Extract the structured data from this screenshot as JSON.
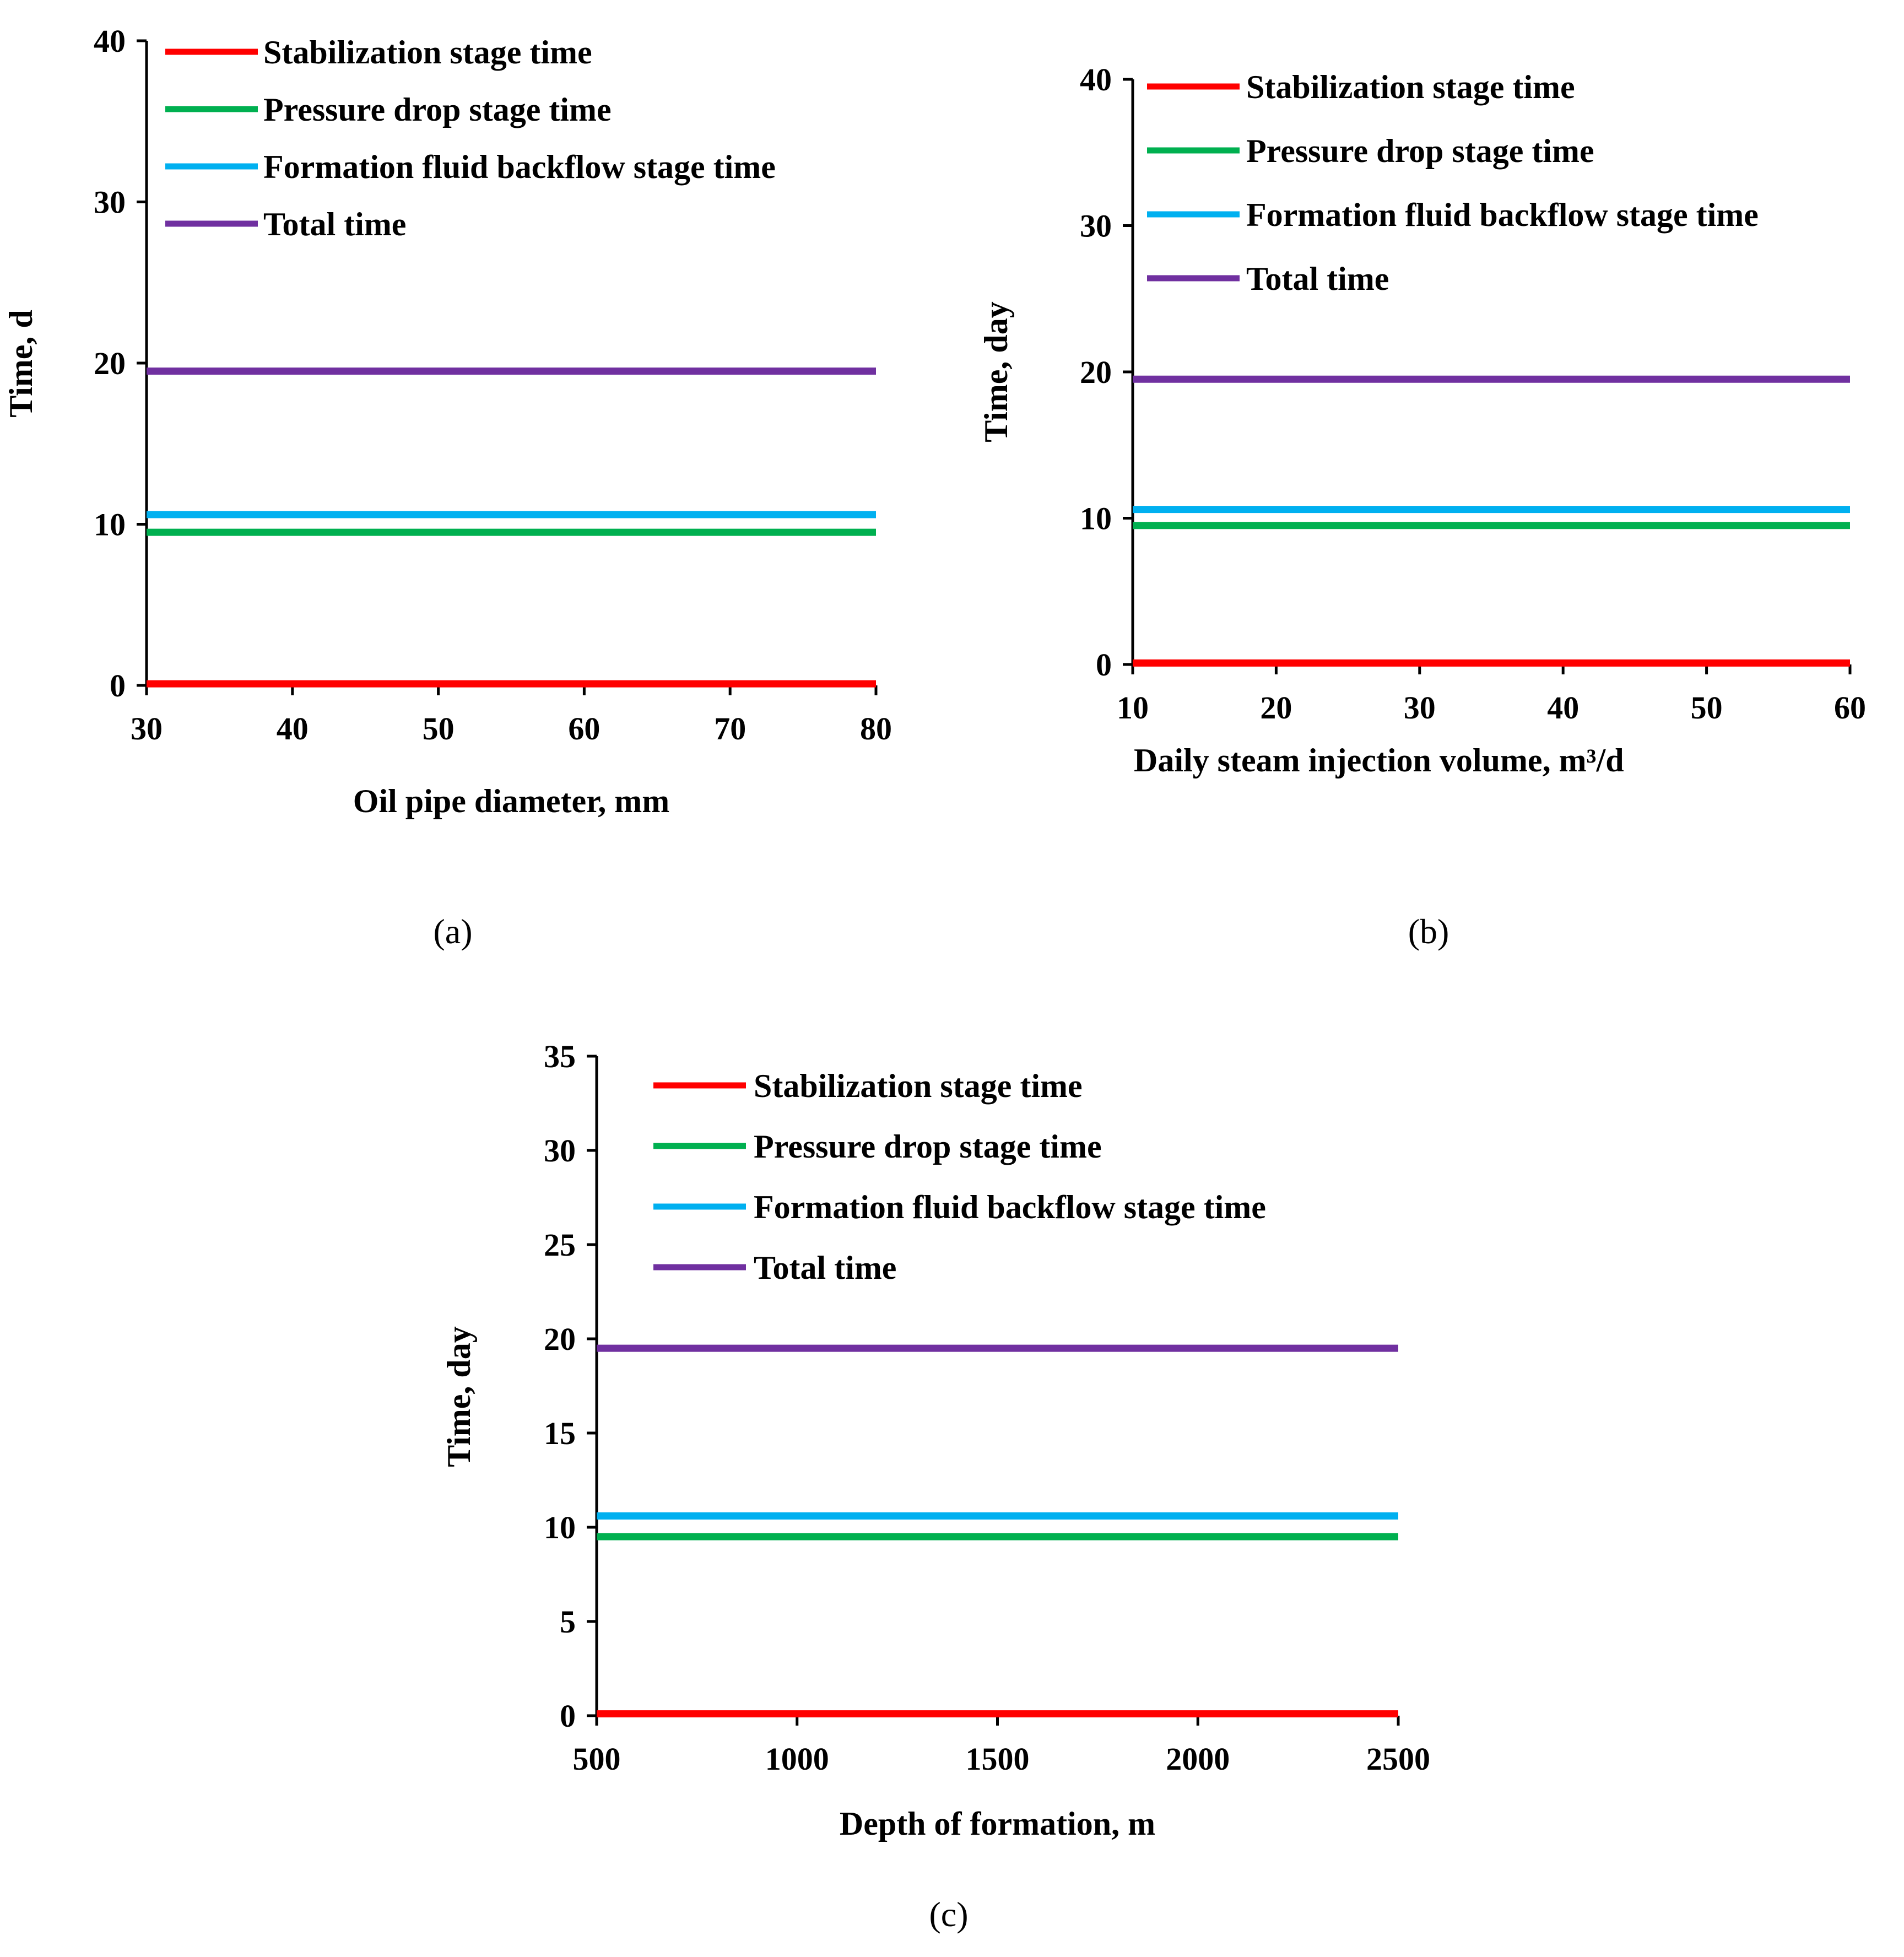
{
  "colors": {
    "stabilization": "#ff0000",
    "pressure": "#00b050",
    "backflow": "#00b0f0",
    "total": "#7030a0"
  },
  "chart_data": [
    {
      "id": "a",
      "type": "line",
      "caption": "(a)",
      "xlabel": "Oil pipe diameter, mm",
      "ylabel": "Time, d",
      "xlim": [
        30,
        80
      ],
      "ylim": [
        0,
        40
      ],
      "xticks": [
        30,
        40,
        50,
        60,
        70,
        80
      ],
      "yticks": [
        0,
        10,
        20,
        30,
        40
      ],
      "legend_position": "top-left",
      "x": [
        30,
        80
      ],
      "series": [
        {
          "name": "Stabilization stage time",
          "color_key": "stabilization",
          "values": [
            0.1,
            0.1
          ]
        },
        {
          "name": "Pressure drop stage time",
          "color_key": "pressure",
          "values": [
            9.5,
            9.5
          ]
        },
        {
          "name": "Formation fluid backflow stage time",
          "color_key": "backflow",
          "values": [
            10.6,
            10.6
          ]
        },
        {
          "name": "Total time",
          "color_key": "total",
          "values": [
            19.5,
            19.5
          ]
        }
      ]
    },
    {
      "id": "b",
      "type": "line",
      "caption": "(b)",
      "xlabel": "Daily steam injection volume, m³/d",
      "ylabel": "Time, day",
      "xlim": [
        10,
        60
      ],
      "ylim": [
        0,
        40
      ],
      "xticks": [
        10,
        20,
        30,
        40,
        50,
        60
      ],
      "yticks": [
        0,
        10,
        20,
        30,
        40
      ],
      "legend_position": "top-left",
      "x": [
        10,
        60
      ],
      "series": [
        {
          "name": "Stabilization stage time",
          "color_key": "stabilization",
          "values": [
            0.1,
            0.1
          ]
        },
        {
          "name": "Pressure drop stage time",
          "color_key": "pressure",
          "values": [
            9.5,
            9.5
          ]
        },
        {
          "name": "Formation fluid backflow stage time",
          "color_key": "backflow",
          "values": [
            10.6,
            10.6
          ]
        },
        {
          "name": "Total time",
          "color_key": "total",
          "values": [
            19.5,
            19.5
          ]
        }
      ]
    },
    {
      "id": "c",
      "type": "line",
      "caption": "(c)",
      "xlabel": "Depth of formation, m",
      "ylabel": "Time, day",
      "xlim": [
        500,
        2500
      ],
      "ylim": [
        0,
        35
      ],
      "xticks": [
        500,
        1000,
        1500,
        2000,
        2500
      ],
      "yticks": [
        0,
        5,
        10,
        15,
        20,
        25,
        30,
        35
      ],
      "legend_position": "top-left",
      "x": [
        500,
        2500
      ],
      "series": [
        {
          "name": "Stabilization stage time",
          "color_key": "stabilization",
          "values": [
            0.1,
            0.1
          ]
        },
        {
          "name": "Pressure drop stage time",
          "color_key": "pressure",
          "values": [
            9.5,
            9.5
          ]
        },
        {
          "name": "Formation fluid backflow stage time",
          "color_key": "backflow",
          "values": [
            10.6,
            10.6
          ]
        },
        {
          "name": "Total time",
          "color_key": "total",
          "values": [
            19.5,
            19.5
          ]
        }
      ]
    }
  ]
}
